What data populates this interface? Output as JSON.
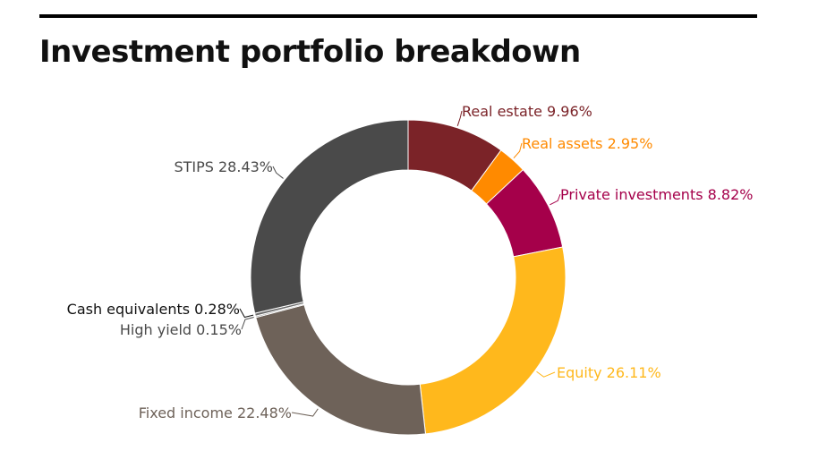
{
  "title": "Investment portfolio breakdown",
  "chart_data": {
    "type": "pie",
    "donut": true,
    "title": "Investment portfolio breakdown",
    "slices": [
      {
        "name": "Real estate",
        "value": 9.96,
        "label": "Real estate 9.96%",
        "color": "#7b2328"
      },
      {
        "name": "Real assets",
        "value": 2.95,
        "label": "Real assets 2.95%",
        "color": "#ff8a00"
      },
      {
        "name": "Private investments",
        "value": 8.82,
        "label": "Private investments 8.82%",
        "color": "#a5004a"
      },
      {
        "name": "Equity",
        "value": 26.11,
        "label": "Equity 26.11%",
        "color": "#ffb81c"
      },
      {
        "name": "Fixed income",
        "value": 22.48,
        "label": "Fixed income 22.48%",
        "color": "#6e6259"
      },
      {
        "name": "High yield",
        "value": 0.15,
        "label": "High yield 0.15%",
        "color": "#9a9a9a"
      },
      {
        "name": "Cash equivalents",
        "value": 0.28,
        "label": "Cash equivalents 0.28%",
        "color": "#6b6b6b"
      },
      {
        "name": "STIPS",
        "value": 28.43,
        "label": "STIPS 28.43%",
        "color": "#4a4a4a"
      }
    ],
    "label_colors": {
      "Real estate": "#7b2328",
      "Real assets": "#ff8a00",
      "Private investments": "#a5004a",
      "Equity": "#ffb81c",
      "Fixed income": "#6e6259",
      "High yield": "#4a4a4a",
      "Cash equivalents": "#111111",
      "STIPS": "#4a4a4a"
    }
  }
}
